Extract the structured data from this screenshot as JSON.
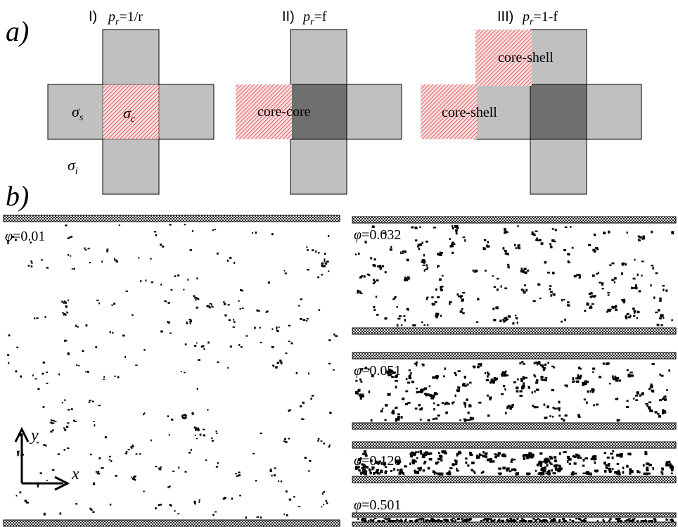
{
  "panel_a": {
    "label": "a)",
    "colors": {
      "shell": "#c0c0c0",
      "core": "#6f6f6f",
      "hatch": "#e0202a",
      "hatch_bg": "#f6dede"
    },
    "cases": [
      {
        "numeral": "I)",
        "p_base": "p",
        "p_sub": "r",
        "p_rhs": "=1/r"
      },
      {
        "numeral": "II)",
        "p_base": "p",
        "p_sub": "r",
        "p_rhs": "=f"
      },
      {
        "numeral": "III)",
        "p_base": "p",
        "p_sub": "r",
        "p_rhs": "=1-f"
      }
    ],
    "sigma_labels": {
      "shell": "s",
      "core": "c",
      "inter": "i"
    },
    "contact_labels": {
      "core_core": "core-core",
      "core_shell_top": "core-shell",
      "core_shell_left": "core-shell"
    }
  },
  "panel_b": {
    "label": "b)",
    "phi_symbol": "φ",
    "axes": {
      "y": "y",
      "x": "x"
    },
    "samples": [
      {
        "phi": "=0.01"
      },
      {
        "phi": "=0.032"
      },
      {
        "phi": "=0.051"
      },
      {
        "phi": "=0.120"
      },
      {
        "phi": "=0.501"
      }
    ]
  }
}
